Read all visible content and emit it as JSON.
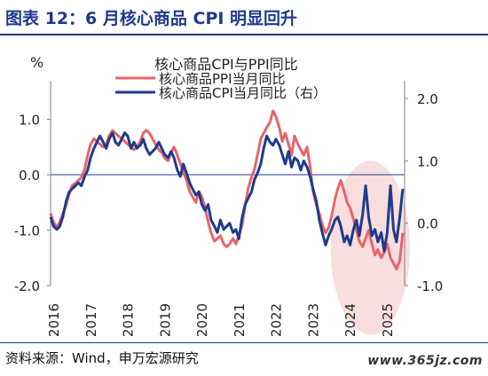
{
  "header": {
    "title": "图表 12：6 月核心商品 CPI 明显回升"
  },
  "footer": {
    "source": "资料来源：Wind，申万宏源研究",
    "watermark": "www.365jz.com"
  },
  "colors": {
    "title": "#1f3a8c",
    "ppi": "#e8646a",
    "cpi": "#1f3a8c",
    "highlight": "#f4cccc"
  },
  "chart_data": {
    "type": "line",
    "title": "核心商品CPI与PPI同比",
    "left_axis": {
      "unit": "%",
      "ylim": [
        -2.0,
        1.6
      ],
      "ticks": [
        "1.0",
        "0.0",
        "-1.0",
        "-2.0"
      ],
      "tick_values": [
        1.0,
        0.0,
        -1.0,
        -2.0
      ]
    },
    "right_axis": {
      "ylim": [
        -1.0,
        2.2
      ],
      "ticks": [
        "2.0",
        "1.0",
        "0.0",
        "-1.0"
      ],
      "tick_values": [
        2.0,
        1.0,
        0.0,
        -1.0
      ]
    },
    "x_range": [
      2016.0,
      2025.55
    ],
    "x_ticks": [
      "2016",
      "2017",
      "2018",
      "2019",
      "2020",
      "2021",
      "2022",
      "2023",
      "2024",
      "2025"
    ],
    "x_tick_values": [
      2016,
      2017,
      2018,
      2019,
      2020,
      2021,
      2022,
      2023,
      2024,
      2025
    ],
    "highlight_region": {
      "x": [
        2023.7,
        2025.55
      ]
    },
    "series": [
      {
        "name": "核心商品PPI当月同比",
        "axis": "left",
        "color": "#e8646a",
        "points": [
          [
            2016.0,
            -0.7
          ],
          [
            2016.08,
            -0.85
          ],
          [
            2016.17,
            -0.95
          ],
          [
            2016.25,
            -0.85
          ],
          [
            2016.33,
            -0.7
          ],
          [
            2016.42,
            -0.55
          ],
          [
            2016.5,
            -0.35
          ],
          [
            2016.58,
            -0.2
          ],
          [
            2016.67,
            -0.15
          ],
          [
            2016.75,
            -0.1
          ],
          [
            2016.83,
            -0.05
          ],
          [
            2016.92,
            0.1
          ],
          [
            2017.0,
            0.35
          ],
          [
            2017.08,
            0.55
          ],
          [
            2017.17,
            0.65
          ],
          [
            2017.25,
            0.6
          ],
          [
            2017.33,
            0.55
          ],
          [
            2017.42,
            0.5
          ],
          [
            2017.5,
            0.55
          ],
          [
            2017.58,
            0.7
          ],
          [
            2017.67,
            0.8
          ],
          [
            2017.75,
            0.75
          ],
          [
            2017.83,
            0.7
          ],
          [
            2017.92,
            0.65
          ],
          [
            2018.0,
            0.6
          ],
          [
            2018.08,
            0.55
          ],
          [
            2018.17,
            0.5
          ],
          [
            2018.25,
            0.45
          ],
          [
            2018.33,
            0.5
          ],
          [
            2018.42,
            0.6
          ],
          [
            2018.5,
            0.75
          ],
          [
            2018.58,
            0.8
          ],
          [
            2018.67,
            0.75
          ],
          [
            2018.75,
            0.65
          ],
          [
            2018.83,
            0.55
          ],
          [
            2018.92,
            0.45
          ],
          [
            2019.0,
            0.4
          ],
          [
            2019.08,
            0.3
          ],
          [
            2019.17,
            0.25
          ],
          [
            2019.25,
            0.4
          ],
          [
            2019.33,
            0.5
          ],
          [
            2019.42,
            0.35
          ],
          [
            2019.5,
            0.2
          ],
          [
            2019.58,
            0.05
          ],
          [
            2019.67,
            -0.1
          ],
          [
            2019.75,
            -0.3
          ],
          [
            2019.83,
            -0.4
          ],
          [
            2019.92,
            -0.5
          ],
          [
            2020.0,
            -0.3
          ],
          [
            2020.08,
            -0.4
          ],
          [
            2020.17,
            -0.6
          ],
          [
            2020.25,
            -0.85
          ],
          [
            2020.33,
            -1.05
          ],
          [
            2020.42,
            -1.2
          ],
          [
            2020.5,
            -1.15
          ],
          [
            2020.58,
            -1.1
          ],
          [
            2020.67,
            -1.25
          ],
          [
            2020.75,
            -1.3
          ],
          [
            2020.83,
            -1.25
          ],
          [
            2020.92,
            -1.15
          ],
          [
            2021.0,
            -1.25
          ],
          [
            2021.08,
            -1.1
          ],
          [
            2021.17,
            -0.9
          ],
          [
            2021.25,
            -0.55
          ],
          [
            2021.33,
            -0.25
          ],
          [
            2021.42,
            -0.05
          ],
          [
            2021.5,
            0.1
          ],
          [
            2021.58,
            0.35
          ],
          [
            2021.67,
            0.65
          ],
          [
            2021.75,
            0.75
          ],
          [
            2021.83,
            0.85
          ],
          [
            2021.92,
            0.95
          ],
          [
            2022.0,
            1.15
          ],
          [
            2022.08,
            1.05
          ],
          [
            2022.17,
            0.85
          ],
          [
            2022.25,
            0.6
          ],
          [
            2022.33,
            0.75
          ],
          [
            2022.42,
            0.55
          ],
          [
            2022.5,
            0.35
          ],
          [
            2022.58,
            0.7
          ],
          [
            2022.67,
            0.55
          ],
          [
            2022.75,
            0.45
          ],
          [
            2022.83,
            0.35
          ],
          [
            2022.92,
            0.5
          ],
          [
            2023.0,
            0.15
          ],
          [
            2023.08,
            -0.3
          ],
          [
            2023.17,
            -0.55
          ],
          [
            2023.25,
            -0.7
          ],
          [
            2023.33,
            -0.9
          ],
          [
            2023.42,
            -1.05
          ],
          [
            2023.5,
            -0.95
          ],
          [
            2023.58,
            -0.75
          ],
          [
            2023.67,
            -0.45
          ],
          [
            2023.75,
            -0.25
          ],
          [
            2023.83,
            -0.1
          ],
          [
            2023.92,
            -0.3
          ],
          [
            2024.0,
            -0.5
          ],
          [
            2024.08,
            -0.6
          ],
          [
            2024.17,
            -0.8
          ],
          [
            2024.25,
            -1.0
          ],
          [
            2024.33,
            -1.2
          ],
          [
            2024.42,
            -1.3
          ],
          [
            2024.5,
            -1.15
          ],
          [
            2024.58,
            -1.0
          ],
          [
            2024.67,
            -1.25
          ],
          [
            2024.75,
            -1.45
          ],
          [
            2024.83,
            -1.35
          ],
          [
            2024.92,
            -1.5
          ],
          [
            2025.0,
            -1.4
          ],
          [
            2025.08,
            -1.25
          ],
          [
            2025.17,
            -1.5
          ],
          [
            2025.25,
            -1.6
          ],
          [
            2025.33,
            -1.7
          ],
          [
            2025.42,
            -1.55
          ],
          [
            2025.5,
            -1.05
          ]
        ]
      },
      {
        "name": "核心商品CPI当月同比（右）",
        "axis": "right",
        "color": "#1f3a8c",
        "points": [
          [
            2016.0,
            0.1
          ],
          [
            2016.08,
            -0.05
          ],
          [
            2016.17,
            -0.1
          ],
          [
            2016.25,
            -0.05
          ],
          [
            2016.33,
            0.1
          ],
          [
            2016.42,
            0.35
          ],
          [
            2016.5,
            0.5
          ],
          [
            2016.58,
            0.55
          ],
          [
            2016.67,
            0.6
          ],
          [
            2016.75,
            0.65
          ],
          [
            2016.83,
            0.6
          ],
          [
            2016.92,
            0.75
          ],
          [
            2017.0,
            0.85
          ],
          [
            2017.08,
            1.05
          ],
          [
            2017.17,
            1.2
          ],
          [
            2017.25,
            1.3
          ],
          [
            2017.33,
            1.4
          ],
          [
            2017.42,
            1.3
          ],
          [
            2017.5,
            1.2
          ],
          [
            2017.58,
            1.35
          ],
          [
            2017.67,
            1.45
          ],
          [
            2017.75,
            1.3
          ],
          [
            2017.83,
            1.25
          ],
          [
            2017.92,
            1.35
          ],
          [
            2018.0,
            1.45
          ],
          [
            2018.08,
            1.4
          ],
          [
            2018.17,
            1.2
          ],
          [
            2018.25,
            1.3
          ],
          [
            2018.33,
            1.2
          ],
          [
            2018.42,
            1.25
          ],
          [
            2018.5,
            1.35
          ],
          [
            2018.58,
            1.2
          ],
          [
            2018.67,
            1.1
          ],
          [
            2018.75,
            1.15
          ],
          [
            2018.83,
            1.2
          ],
          [
            2018.92,
            1.3
          ],
          [
            2019.0,
            1.2
          ],
          [
            2019.08,
            1.1
          ],
          [
            2019.17,
            1.05
          ],
          [
            2019.25,
            1.15
          ],
          [
            2019.33,
            1.05
          ],
          [
            2019.42,
            0.85
          ],
          [
            2019.5,
            0.75
          ],
          [
            2019.58,
            0.95
          ],
          [
            2019.67,
            0.8
          ],
          [
            2019.75,
            0.65
          ],
          [
            2019.83,
            0.55
          ],
          [
            2019.92,
            0.45
          ],
          [
            2020.0,
            0.5
          ],
          [
            2020.08,
            0.3
          ],
          [
            2020.17,
            0.2
          ],
          [
            2020.25,
            0.3
          ],
          [
            2020.33,
            0.05
          ],
          [
            2020.42,
            -0.05
          ],
          [
            2020.5,
            -0.15
          ],
          [
            2020.58,
            0.05
          ],
          [
            2020.67,
            -0.1
          ],
          [
            2020.75,
            -0.05
          ],
          [
            2020.83,
            0.0
          ],
          [
            2020.92,
            -0.15
          ],
          [
            2021.0,
            -0.1
          ],
          [
            2021.08,
            -0.25
          ],
          [
            2021.17,
            0.1
          ],
          [
            2021.25,
            0.3
          ],
          [
            2021.33,
            0.4
          ],
          [
            2021.42,
            0.5
          ],
          [
            2021.5,
            0.7
          ],
          [
            2021.58,
            0.8
          ],
          [
            2021.67,
            0.95
          ],
          [
            2021.75,
            1.2
          ],
          [
            2021.83,
            1.4
          ],
          [
            2021.92,
            1.3
          ],
          [
            2022.0,
            1.25
          ],
          [
            2022.08,
            1.35
          ],
          [
            2022.17,
            1.25
          ],
          [
            2022.25,
            1.1
          ],
          [
            2022.33,
            0.95
          ],
          [
            2022.42,
            1.15
          ],
          [
            2022.5,
            0.9
          ],
          [
            2022.58,
            1.05
          ],
          [
            2022.67,
            1.0
          ],
          [
            2022.75,
            0.85
          ],
          [
            2022.83,
            1.0
          ],
          [
            2022.92,
            0.9
          ],
          [
            2023.0,
            0.75
          ],
          [
            2023.08,
            0.55
          ],
          [
            2023.17,
            0.35
          ],
          [
            2023.25,
            0.05
          ],
          [
            2023.33,
            -0.15
          ],
          [
            2023.42,
            -0.35
          ],
          [
            2023.5,
            -0.2
          ],
          [
            2023.58,
            -0.1
          ],
          [
            2023.67,
            0.05
          ],
          [
            2023.75,
            0.1
          ],
          [
            2023.83,
            -0.05
          ],
          [
            2023.92,
            -0.3
          ],
          [
            2024.0,
            -0.2
          ],
          [
            2024.08,
            -0.35
          ],
          [
            2024.17,
            -0.1
          ],
          [
            2024.25,
            0.05
          ],
          [
            2024.33,
            -0.2
          ],
          [
            2024.42,
            0.15
          ],
          [
            2024.5,
            0.6
          ],
          [
            2024.58,
            0.1
          ],
          [
            2024.67,
            -0.2
          ],
          [
            2024.75,
            -0.1
          ],
          [
            2024.83,
            -0.3
          ],
          [
            2024.92,
            -0.15
          ],
          [
            2025.0,
            -0.45
          ],
          [
            2025.08,
            -0.15
          ],
          [
            2025.17,
            0.6
          ],
          [
            2025.25,
            -0.1
          ],
          [
            2025.33,
            -0.3
          ],
          [
            2025.42,
            0.1
          ],
          [
            2025.5,
            0.55
          ]
        ]
      }
    ]
  }
}
